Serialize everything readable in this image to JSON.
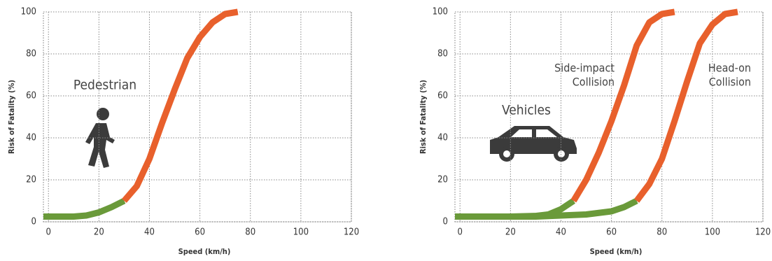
{
  "chart_data": [
    {
      "type": "line",
      "xlabel": "Speed (km/h)",
      "ylabel": "Risk of Fatality (%)",
      "xlim": [
        -2,
        120
      ],
      "ylim": [
        0,
        100
      ],
      "xticks": [
        0,
        20,
        40,
        60,
        80,
        100,
        120
      ],
      "yticks": [
        0,
        20,
        40,
        60,
        80,
        100
      ],
      "grid": true,
      "annotations": [
        {
          "lines": [
            "Pedestrian"
          ]
        }
      ],
      "series": [
        {
          "color": "#6a9a3a",
          "x": [
            -2,
            10,
            15,
            20,
            25,
            30
          ],
          "values": [
            2.5,
            2.5,
            3,
            4.5,
            7,
            10
          ]
        },
        {
          "color": "#e8602c",
          "x": [
            30,
            35,
            40,
            45,
            50,
            55,
            60,
            65,
            70,
            75
          ],
          "values": [
            10,
            17,
            30,
            47,
            63,
            78,
            88,
            95,
            99,
            100
          ]
        }
      ]
    },
    {
      "type": "line",
      "xlabel": "Speed (km/h)",
      "ylabel": "Risk of Fatality (%)",
      "xlim": [
        -2,
        120
      ],
      "ylim": [
        0,
        100
      ],
      "xticks": [
        0,
        20,
        40,
        60,
        80,
        100,
        120
      ],
      "yticks": [
        0,
        20,
        40,
        60,
        80,
        100
      ],
      "grid": true,
      "annotations": [
        {
          "lines": [
            "Vehicles"
          ]
        },
        {
          "lines": [
            "Side-impact",
            "Collision"
          ]
        },
        {
          "lines": [
            "Head-on",
            "Collision"
          ]
        }
      ],
      "series": [
        {
          "color": "#6a9a3a",
          "x": [
            -2,
            20,
            30,
            35,
            40,
            45
          ],
          "values": [
            2.5,
            2.5,
            2.8,
            3.5,
            6,
            10
          ]
        },
        {
          "color": "#e8602c",
          "x": [
            45,
            50,
            55,
            60,
            65,
            70,
            75,
            80,
            85
          ],
          "values": [
            10,
            20,
            33,
            48,
            65,
            84,
            95,
            99,
            100
          ]
        },
        {
          "color": "#6a9a3a",
          "x": [
            -2,
            30,
            50,
            60,
            65,
            70
          ],
          "values": [
            2.5,
            2.5,
            3.5,
            5,
            7,
            10
          ]
        },
        {
          "color": "#e8602c",
          "x": [
            70,
            75,
            80,
            85,
            90,
            95,
            100,
            105,
            110
          ],
          "values": [
            10,
            18,
            30,
            48,
            67,
            85,
            94,
            99,
            100
          ]
        }
      ]
    }
  ]
}
